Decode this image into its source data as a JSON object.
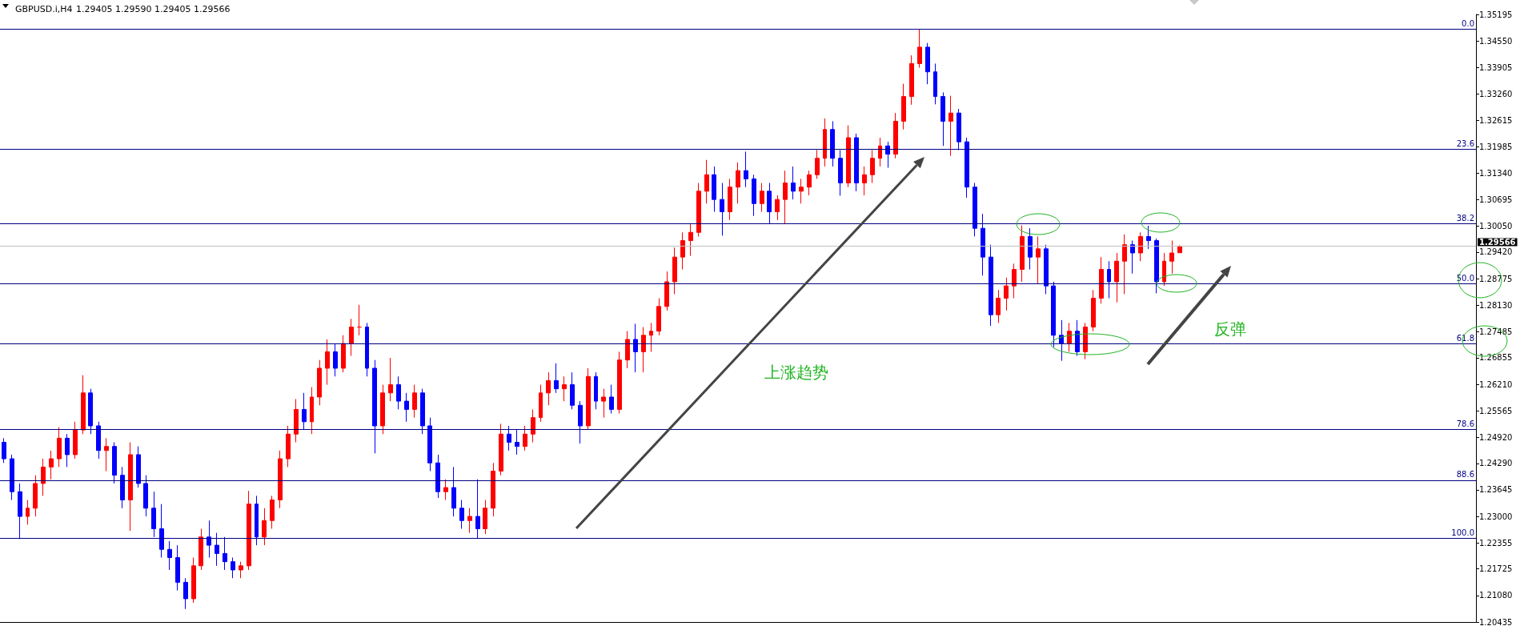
{
  "chart_data": {
    "type": "candlestick",
    "title": "GBPUSD.i,H4",
    "subtitle": "1.29405 1.29590 1.29405 1.29566",
    "annotations": [
      "上涨趋势",
      "反弹",
      "0.0",
      "23.6",
      "38.2",
      "50.0",
      "61.8",
      "78.6",
      "88.6",
      "100.0"
    ],
    "tick_labels": "y",
    "categories": [
      null,
      null,
      null,
      null,
      null,
      null,
      null,
      null,
      null,
      null,
      null,
      null,
      null,
      null,
      null,
      null,
      null,
      null,
      null,
      null,
      null,
      null,
      null,
      null,
      null,
      null,
      null,
      null,
      null,
      null,
      null,
      null,
      null,
      null,
      null,
      null,
      null,
      null,
      null,
      null,
      null,
      null,
      null,
      null,
      null,
      null,
      null,
      null,
      null,
      null,
      null,
      null,
      null,
      null,
      null,
      null,
      null,
      null,
      null,
      null,
      null,
      null,
      null,
      null,
      null,
      null,
      null,
      null,
      null,
      null,
      null,
      null,
      null,
      null,
      null,
      null,
      null,
      null,
      null,
      null,
      null,
      null,
      null,
      null,
      null,
      null,
      null,
      null,
      null,
      null,
      null,
      null,
      null,
      null,
      null,
      null,
      null,
      null,
      null,
      null,
      null,
      null,
      null,
      null,
      null,
      null,
      null,
      null,
      null,
      null,
      null,
      null,
      null,
      null,
      null,
      null,
      null,
      null,
      null,
      null,
      null,
      null,
      null,
      null,
      null,
      null,
      null,
      null,
      null,
      null,
      null,
      null,
      null,
      null,
      null,
      null,
      null,
      null,
      null,
      null,
      null,
      null,
      null,
      null,
      null,
      null,
      null,
      null,
      null,
      null,
      null,
      null,
      null,
      null,
      null,
      null,
      null,
      null,
      null,
      null,
      null,
      null,
      null,
      null,
      null,
      null,
      null,
      null,
      null,
      null,
      null,
      null,
      null,
      null,
      null,
      null,
      null,
      null,
      null,
      null,
      null,
      null,
      null,
      null,
      null,
      null,
      null
    ],
    "ohlc": [
      [
        1.248,
        1.249,
        1.243,
        1.244
      ],
      [
        1.244,
        1.245,
        1.234,
        1.236
      ],
      [
        1.236,
        1.238,
        1.2245,
        1.23
      ],
      [
        1.23,
        1.234,
        1.228,
        1.232
      ],
      [
        1.232,
        1.24,
        1.23,
        1.238
      ],
      [
        1.238,
        1.244,
        1.235,
        1.242
      ],
      [
        1.242,
        1.246,
        1.239,
        1.244
      ],
      [
        1.244,
        1.2517,
        1.242,
        1.249
      ],
      [
        1.249,
        1.25,
        1.242,
        1.245
      ],
      [
        1.245,
        1.253,
        1.244,
        1.251
      ],
      [
        1.251,
        1.2643,
        1.25,
        1.26
      ],
      [
        1.26,
        1.261,
        1.25,
        1.252
      ],
      [
        1.252,
        1.253,
        1.244,
        1.246
      ],
      [
        1.246,
        1.249,
        1.241,
        1.247
      ],
      [
        1.247,
        1.248,
        1.238,
        1.24
      ],
      [
        1.24,
        1.242,
        1.232,
        1.234
      ],
      [
        1.234,
        1.248,
        1.2265,
        1.245
      ],
      [
        1.245,
        1.247,
        1.237,
        1.238
      ],
      [
        1.238,
        1.24,
        1.23,
        1.232
      ],
      [
        1.232,
        1.236,
        1.225,
        1.227
      ],
      [
        1.227,
        1.233,
        1.22,
        1.222
      ],
      [
        1.222,
        1.224,
        1.217,
        1.22
      ],
      [
        1.22,
        1.223,
        1.212,
        1.214
      ],
      [
        1.214,
        1.215,
        1.2075,
        1.21
      ],
      [
        1.21,
        1.22,
        1.209,
        1.218
      ],
      [
        1.218,
        1.227,
        1.217,
        1.225
      ],
      [
        1.225,
        1.229,
        1.22,
        1.223
      ],
      [
        1.223,
        1.226,
        1.218,
        1.221
      ],
      [
        1.221,
        1.225,
        1.217,
        1.219
      ],
      [
        1.219,
        1.22,
        1.215,
        1.217
      ],
      [
        1.217,
        1.219,
        1.215,
        1.218
      ],
      [
        1.218,
        1.2362,
        1.217,
        1.233
      ],
      [
        1.233,
        1.235,
        1.223,
        1.225
      ],
      [
        1.225,
        1.232,
        1.223,
        1.229
      ],
      [
        1.229,
        1.235,
        1.227,
        1.234
      ],
      [
        1.234,
        1.246,
        1.232,
        1.244
      ],
      [
        1.244,
        1.252,
        1.242,
        1.25
      ],
      [
        1.25,
        1.2585,
        1.248,
        1.256
      ],
      [
        1.256,
        1.26,
        1.251,
        1.253
      ],
      [
        1.253,
        1.2614,
        1.25,
        1.259
      ],
      [
        1.259,
        1.268,
        1.257,
        1.266
      ],
      [
        1.266,
        1.273,
        1.262,
        1.27
      ],
      [
        1.27,
        1.272,
        1.264,
        1.266
      ],
      [
        1.266,
        1.274,
        1.265,
        1.272
      ],
      [
        1.272,
        1.278,
        1.269,
        1.276
      ],
      [
        1.276,
        1.2814,
        1.274,
        1.276
      ],
      [
        1.276,
        1.277,
        1.264,
        1.266
      ],
      [
        1.266,
        1.268,
        1.2453,
        1.252
      ],
      [
        1.252,
        1.262,
        1.25,
        1.26
      ],
      [
        1.26,
        1.2685,
        1.258,
        1.262
      ],
      [
        1.262,
        1.264,
        1.256,
        1.258
      ],
      [
        1.258,
        1.26,
        1.253,
        1.256
      ],
      [
        1.256,
        1.262,
        1.254,
        1.26
      ],
      [
        1.26,
        1.261,
        1.25,
        1.252
      ],
      [
        1.252,
        1.254,
        1.241,
        1.243
      ],
      [
        1.243,
        1.245,
        1.2345,
        1.236
      ],
      [
        1.236,
        1.239,
        1.234,
        1.237
      ],
      [
        1.237,
        1.242,
        1.23,
        1.232
      ],
      [
        1.232,
        1.234,
        1.227,
        1.229
      ],
      [
        1.229,
        1.232,
        1.226,
        1.23
      ],
      [
        1.23,
        1.239,
        1.2247,
        1.227
      ],
      [
        1.227,
        1.234,
        1.2257,
        1.232
      ],
      [
        1.232,
        1.243,
        1.23,
        1.241
      ],
      [
        1.241,
        1.2525,
        1.24,
        1.25
      ],
      [
        1.25,
        1.252,
        1.246,
        1.248
      ],
      [
        1.248,
        1.251,
        1.245,
        1.247
      ],
      [
        1.247,
        1.252,
        1.246,
        1.25
      ],
      [
        1.25,
        1.256,
        1.248,
        1.254
      ],
      [
        1.254,
        1.262,
        1.253,
        1.26
      ],
      [
        1.26,
        1.265,
        1.257,
        1.263
      ],
      [
        1.263,
        1.2672,
        1.26,
        1.261
      ],
      [
        1.261,
        1.264,
        1.258,
        1.262
      ],
      [
        1.262,
        1.265,
        1.256,
        1.257
      ],
      [
        1.257,
        1.258,
        1.2477,
        1.252
      ],
      [
        1.252,
        1.266,
        1.251,
        1.264
      ],
      [
        1.264,
        1.265,
        1.256,
        1.258
      ],
      [
        1.258,
        1.261,
        1.254,
        1.259
      ],
      [
        1.259,
        1.262,
        1.255,
        1.256
      ],
      [
        1.256,
        1.27,
        1.255,
        1.268
      ],
      [
        1.268,
        1.275,
        1.266,
        1.273
      ],
      [
        1.273,
        1.2768,
        1.265,
        1.27
      ],
      [
        1.27,
        1.276,
        1.265,
        1.274
      ],
      [
        1.274,
        1.277,
        1.27,
        1.275
      ],
      [
        1.275,
        1.283,
        1.274,
        1.281
      ],
      [
        1.281,
        1.2895,
        1.28,
        1.287
      ],
      [
        1.287,
        1.2953,
        1.284,
        1.293
      ],
      [
        1.293,
        1.299,
        1.29,
        1.297
      ],
      [
        1.297,
        1.3011,
        1.2933,
        1.299
      ],
      [
        1.299,
        1.311,
        1.298,
        1.309
      ],
      [
        1.309,
        1.3166,
        1.306,
        1.313
      ],
      [
        1.313,
        1.315,
        1.304,
        1.307
      ],
      [
        1.307,
        1.311,
        1.2982,
        1.304
      ],
      [
        1.304,
        1.312,
        1.302,
        1.31
      ],
      [
        1.31,
        1.316,
        1.306,
        1.314
      ],
      [
        1.314,
        1.3186,
        1.31,
        1.312
      ],
      [
        1.312,
        1.313,
        1.303,
        1.306
      ],
      [
        1.306,
        1.311,
        1.304,
        1.309
      ],
      [
        1.309,
        1.311,
        1.3011,
        1.304
      ],
      [
        1.304,
        1.308,
        1.302,
        1.307
      ],
      [
        1.307,
        1.314,
        1.301,
        1.311
      ],
      [
        1.311,
        1.315,
        1.307,
        1.309
      ],
      [
        1.309,
        1.312,
        1.306,
        1.31
      ],
      [
        1.31,
        1.314,
        1.308,
        1.313
      ],
      [
        1.313,
        1.319,
        1.312,
        1.317
      ],
      [
        1.317,
        1.3267,
        1.315,
        1.324
      ],
      [
        1.324,
        1.326,
        1.315,
        1.317
      ],
      [
        1.317,
        1.319,
        1.3079,
        1.311
      ],
      [
        1.311,
        1.325,
        1.31,
        1.322
      ],
      [
        1.322,
        1.323,
        1.309,
        1.311
      ],
      [
        1.311,
        1.315,
        1.308,
        1.313
      ],
      [
        1.313,
        1.319,
        1.311,
        1.317
      ],
      [
        1.317,
        1.322,
        1.315,
        1.32
      ],
      [
        1.32,
        1.321,
        1.3147,
        1.318
      ],
      [
        1.318,
        1.328,
        1.317,
        1.326
      ],
      [
        1.326,
        1.3351,
        1.324,
        1.332
      ],
      [
        1.332,
        1.342,
        1.33,
        1.34
      ],
      [
        1.34,
        1.3484,
        1.339,
        1.344
      ],
      [
        1.344,
        1.345,
        1.335,
        1.338
      ],
      [
        1.338,
        1.34,
        1.3301,
        1.332
      ],
      [
        1.332,
        1.333,
        1.32,
        1.326
      ],
      [
        1.326,
        1.3322,
        1.3176,
        1.328
      ],
      [
        1.328,
        1.329,
        1.319,
        1.321
      ],
      [
        1.321,
        1.322,
        1.3074,
        1.31
      ],
      [
        1.31,
        1.311,
        1.298,
        1.3
      ],
      [
        1.3,
        1.3035,
        1.2885,
        1.293
      ],
      [
        1.293,
        1.296,
        1.2763,
        1.279
      ],
      [
        1.279,
        1.285,
        1.277,
        1.283
      ],
      [
        1.283,
        1.288,
        1.28,
        1.286
      ],
      [
        1.286,
        1.2914,
        1.283,
        1.29
      ],
      [
        1.29,
        1.3007,
        1.287,
        1.298
      ],
      [
        1.298,
        1.3,
        1.29,
        1.293
      ],
      [
        1.293,
        1.298,
        1.2866,
        1.295
      ],
      [
        1.295,
        1.296,
        1.284,
        1.286
      ],
      [
        1.286,
        1.287,
        1.2711,
        1.274
      ],
      [
        1.274,
        1.2777,
        1.2678,
        1.272
      ],
      [
        1.272,
        1.277,
        1.27,
        1.275
      ],
      [
        1.275,
        1.2777,
        1.269,
        1.27
      ],
      [
        1.27,
        1.277,
        1.2682,
        1.276
      ],
      [
        1.276,
        1.285,
        1.275,
        1.283
      ],
      [
        1.283,
        1.293,
        1.2817,
        1.29
      ],
      [
        1.29,
        1.292,
        1.283,
        1.287
      ],
      [
        1.287,
        1.294,
        1.282,
        1.292
      ],
      [
        1.292,
        1.2985,
        1.284,
        1.296
      ],
      [
        1.296,
        1.297,
        1.289,
        1.294
      ],
      [
        1.294,
        1.299,
        1.292,
        1.298
      ],
      [
        1.298,
        1.3006,
        1.295,
        1.297
      ],
      [
        1.297,
        1.2975,
        1.2842,
        1.287
      ],
      [
        1.287,
        1.294,
        1.286,
        1.292
      ],
      [
        1.292,
        1.297,
        1.289,
        1.294
      ],
      [
        1.29405,
        1.2959,
        1.29405,
        1.29566
      ],
      null,
      null,
      null,
      null,
      null,
      null,
      null,
      null,
      null,
      null,
      null,
      null,
      null,
      null,
      null,
      null,
      null,
      null,
      null,
      null,
      null,
      null,
      null,
      null,
      null,
      null,
      null,
      null,
      null,
      null,
      null,
      null,
      null,
      null,
      null,
      null,
      null
    ],
    "ylim": [
      1.20435,
      1.35195
    ],
    "yticks": [
      {
        "value": 1.35195,
        "label": "1.35195"
      },
      {
        "value": 1.3455,
        "label": "1.34550"
      },
      {
        "value": 1.33905,
        "label": "1.33905"
      },
      {
        "value": 1.3326,
        "label": "1.33260"
      },
      {
        "value": 1.32615,
        "label": "1.32615"
      },
      {
        "value": 1.31985,
        "label": "1.31985"
      },
      {
        "value": 1.3134,
        "label": "1.31340"
      },
      {
        "value": 1.30695,
        "label": "1.30695"
      },
      {
        "value": 1.3005,
        "label": "1.30050"
      },
      {
        "value": 1.2942,
        "label": "1.29420"
      },
      {
        "value": 1.28775,
        "label": "1.28775"
      },
      {
        "value": 1.2813,
        "label": "1.28130"
      },
      {
        "value": 1.27485,
        "label": "1.27485"
      },
      {
        "value": 1.26855,
        "label": "1.26855"
      },
      {
        "value": 1.2621,
        "label": "1.26210"
      },
      {
        "value": 1.25565,
        "label": "1.25565"
      },
      {
        "value": 1.2492,
        "label": "1.24920"
      },
      {
        "value": 1.2429,
        "label": "1.24290"
      },
      {
        "value": 1.23645,
        "label": "1.23645"
      },
      {
        "value": 1.23,
        "label": "1.23000"
      },
      {
        "value": 1.22355,
        "label": "1.22355"
      },
      {
        "value": 1.21725,
        "label": "1.21725"
      },
      {
        "value": 1.2108,
        "label": "1.21080"
      },
      {
        "value": 1.20435,
        "label": "1.20435"
      }
    ],
    "ref_lines": [
      {
        "axis": "y",
        "value": 1.3484,
        "color": "#000080"
      },
      {
        "axis": "y",
        "value": 1.3192,
        "color": "#000080"
      },
      {
        "axis": "y",
        "value": 1.3011,
        "color": "#000080"
      },
      {
        "axis": "y",
        "value": 1.2866,
        "color": "#000080"
      },
      {
        "axis": "y",
        "value": 1.272,
        "color": "#000080"
      },
      {
        "axis": "y",
        "value": 1.2512,
        "color": "#000080"
      },
      {
        "axis": "y",
        "value": 1.2388,
        "color": "#000080"
      },
      {
        "axis": "y",
        "value": 1.2247,
        "color": "#000080"
      },
      {
        "axis": "y",
        "value": 1.29566,
        "label": "1.29566",
        "color": "#c0c0c0"
      }
    ]
  }
}
